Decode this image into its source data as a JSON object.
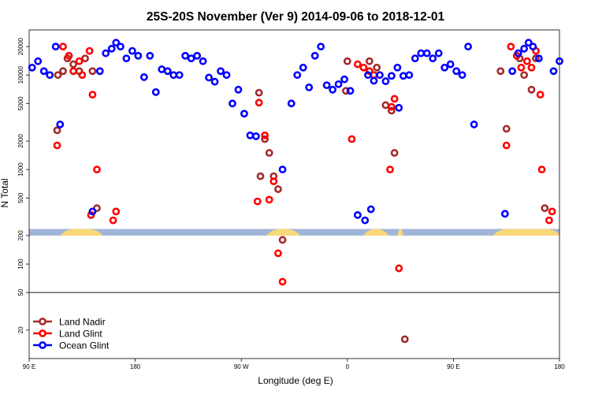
{
  "chart_data": {
    "type": "scatter",
    "title": "25S-20S November (Ver 9)   2014-09-06 to 2018-12-01",
    "xlabel": "Longitude (deg E)",
    "ylabel": "N Total",
    "x_scale": "linear",
    "y_scale": "log",
    "xlim": [
      90,
      450
    ],
    "ylim": [
      10,
      30000
    ],
    "x_ticks": [
      {
        "value": 90,
        "label": "90 E"
      },
      {
        "value": 162,
        "label": "180"
      },
      {
        "value": 234,
        "label": "90 W"
      },
      {
        "value": 306,
        "label": "0"
      },
      {
        "value": 378,
        "label": "90 E"
      },
      {
        "value": 450,
        "label": "180"
      }
    ],
    "y_ticks": [
      {
        "value": 20,
        "label": "20"
      },
      {
        "value": 50,
        "label": "50"
      },
      {
        "value": 100,
        "label": "100"
      },
      {
        "value": 200,
        "label": "200"
      },
      {
        "value": 500,
        "label": "500"
      },
      {
        "value": 1000,
        "label": "1000"
      },
      {
        "value": 2000,
        "label": "2000"
      },
      {
        "value": 5000,
        "label": "5000"
      },
      {
        "value": 10000,
        "label": "10000"
      },
      {
        "value": 20000,
        "label": "20000"
      }
    ],
    "separator_y": 50,
    "surface_strip": {
      "y_range": [
        200,
        235
      ],
      "ocean_color": "#9fb6d8",
      "land_color": "#f9d877",
      "land_segments": [
        [
          111,
          140
        ],
        [
          251,
          274
        ],
        [
          317,
          334
        ],
        [
          340,
          344
        ],
        [
          405,
          451
        ]
      ]
    },
    "series": [
      {
        "name": "Land Nadir",
        "color": "#a52a2a",
        "points": [
          [
            109,
            2600
          ],
          [
            113,
            11000
          ],
          [
            116,
            15000
          ],
          [
            120,
            13000
          ],
          [
            124,
            11000
          ],
          [
            128,
            15000
          ],
          [
            133,
            11000
          ],
          [
            109.5,
            10000
          ],
          [
            136,
            390
          ],
          [
            246,
            6500
          ],
          [
            247,
            850
          ],
          [
            250,
            2100
          ],
          [
            253,
            1500
          ],
          [
            256,
            850
          ],
          [
            259,
            620
          ],
          [
            262,
            180
          ],
          [
            305,
            6800
          ],
          [
            321,
            14000
          ],
          [
            326,
            12000
          ],
          [
            332,
            4800
          ],
          [
            336,
            4200
          ],
          [
            338,
            1500
          ],
          [
            306,
            14000
          ],
          [
            345,
            16
          ],
          [
            414,
            2700
          ],
          [
            410,
            11000
          ],
          [
            423,
            15000
          ],
          [
            426,
            10000
          ],
          [
            431,
            7000
          ],
          [
            434,
            15000
          ],
          [
            440,
            390
          ]
        ]
      },
      {
        "name": "Land Glint",
        "color": "#ff0000",
        "points": [
          [
            109,
            1800
          ],
          [
            113,
            20000
          ],
          [
            117,
            16000
          ],
          [
            120,
            11000
          ],
          [
            124,
            14000
          ],
          [
            126,
            10000
          ],
          [
            131,
            18000
          ],
          [
            133,
            6200
          ],
          [
            136,
            1000
          ],
          [
            132,
            330
          ],
          [
            147,
            290
          ],
          [
            149,
            360
          ],
          [
            245,
            460
          ],
          [
            246,
            5100
          ],
          [
            250,
            2300
          ],
          [
            253,
            480
          ],
          [
            256,
            750
          ],
          [
            259,
            130
          ],
          [
            262,
            65
          ],
          [
            309,
            2100
          ],
          [
            313,
            13000
          ],
          [
            317,
            12000
          ],
          [
            321,
            11000
          ],
          [
            324,
            10000
          ],
          [
            335,
            1000
          ],
          [
            338,
            5600
          ],
          [
            336,
            4600
          ],
          [
            341,
            90
          ],
          [
            414,
            1800
          ],
          [
            417,
            20000
          ],
          [
            421,
            16000
          ],
          [
            424,
            12000
          ],
          [
            428,
            14000
          ],
          [
            431,
            12000
          ],
          [
            434,
            18000
          ],
          [
            437,
            6200
          ],
          [
            438,
            1000
          ],
          [
            443,
            290
          ],
          [
            445,
            360
          ]
        ]
      },
      {
        "name": "Ocean Glint",
        "color": "#0000ff",
        "points": [
          [
            92,
            12000
          ],
          [
            96,
            14000
          ],
          [
            100,
            11000
          ],
          [
            104,
            10000
          ],
          [
            108,
            20000
          ],
          [
            111,
            3000
          ],
          [
            133,
            360
          ],
          [
            138,
            11000
          ],
          [
            142,
            17000
          ],
          [
            146,
            19000
          ],
          [
            149,
            22000
          ],
          [
            152,
            20000
          ],
          [
            156,
            15000
          ],
          [
            160,
            18000
          ],
          [
            164,
            16000
          ],
          [
            168,
            9500
          ],
          [
            172,
            16000
          ],
          [
            176,
            6600
          ],
          [
            180,
            11500
          ],
          [
            184,
            11000
          ],
          [
            188,
            10000
          ],
          [
            192,
            10000
          ],
          [
            196,
            16000
          ],
          [
            200,
            15000
          ],
          [
            204,
            16000
          ],
          [
            208,
            14000
          ],
          [
            212,
            9400
          ],
          [
            216,
            8500
          ],
          [
            220,
            11000
          ],
          [
            224,
            10000
          ],
          [
            228,
            5000
          ],
          [
            232,
            7000
          ],
          [
            236,
            3900
          ],
          [
            240,
            2300
          ],
          [
            244,
            2250
          ],
          [
            262,
            1000
          ],
          [
            268,
            5000
          ],
          [
            272,
            10000
          ],
          [
            276,
            12000
          ],
          [
            280,
            7400
          ],
          [
            284,
            16000
          ],
          [
            288,
            20000
          ],
          [
            292,
            7800
          ],
          [
            296,
            7000
          ],
          [
            300,
            8000
          ],
          [
            304,
            9000
          ],
          [
            308,
            6800
          ],
          [
            320,
            10000
          ],
          [
            324,
            8700
          ],
          [
            328,
            10000
          ],
          [
            332,
            8600
          ],
          [
            336,
            9800
          ],
          [
            340,
            12000
          ],
          [
            344,
            9800
          ],
          [
            348,
            10000
          ],
          [
            352,
            15000
          ],
          [
            356,
            17000
          ],
          [
            360,
            17000
          ],
          [
            364,
            15000
          ],
          [
            368,
            17000
          ],
          [
            372,
            12000
          ],
          [
            376,
            13000
          ],
          [
            380,
            11000
          ],
          [
            384,
            10000
          ],
          [
            388,
            20000
          ],
          [
            392,
            3000
          ],
          [
            413,
            340
          ],
          [
            418,
            11000
          ],
          [
            422,
            17000
          ],
          [
            426,
            19000
          ],
          [
            429,
            22000
          ],
          [
            432,
            20000
          ],
          [
            436,
            15000
          ],
          [
            446,
            11000
          ],
          [
            450,
            14000
          ],
          [
            313,
            330
          ],
          [
            318,
            290
          ],
          [
            322,
            380
          ],
          [
            341,
            4500
          ]
        ]
      }
    ],
    "legend_placement": "bottom-left",
    "grid": false
  }
}
